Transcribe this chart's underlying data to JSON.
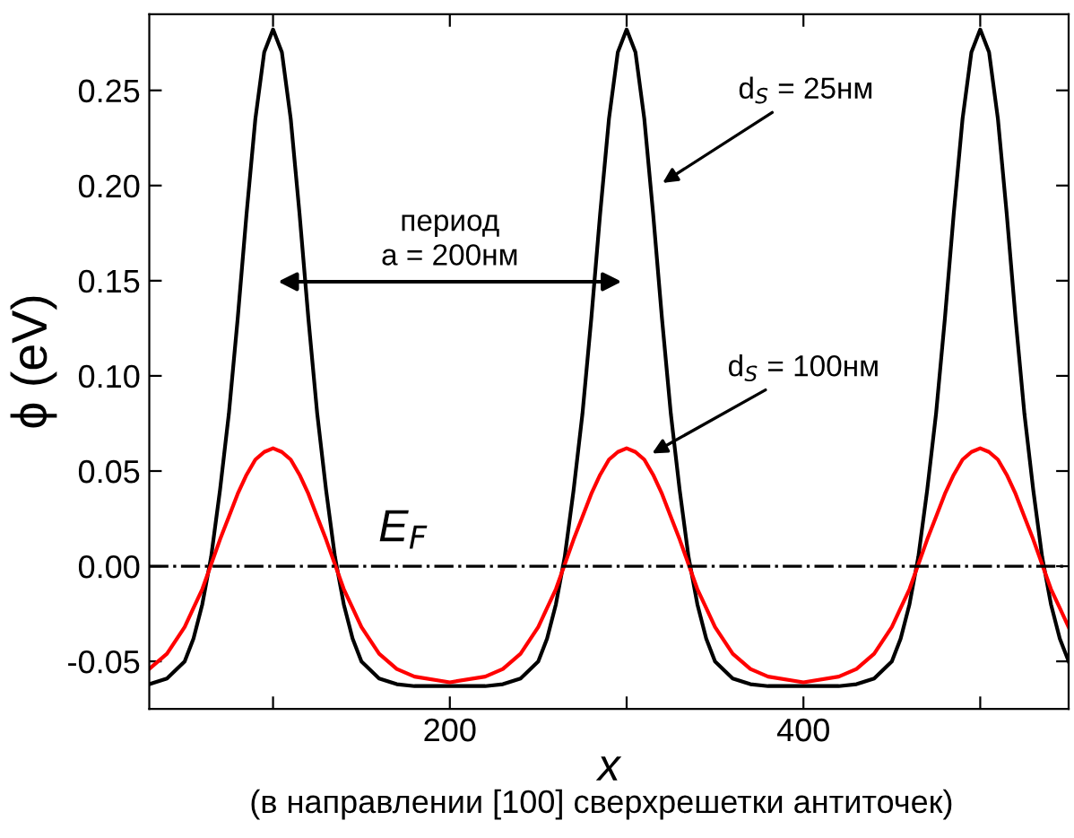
{
  "chart_data": {
    "type": "line",
    "ylabel": "ϕ (eV)",
    "xlabel": "x",
    "x": [
      30,
      40,
      50,
      55,
      60,
      65,
      70,
      75,
      80,
      85,
      90,
      95,
      100,
      105,
      110,
      115,
      120,
      125,
      130,
      135,
      140,
      145,
      150,
      160,
      170,
      180,
      200,
      220,
      230,
      240,
      250,
      255,
      260,
      265,
      270,
      275,
      280,
      285,
      290,
      295,
      300,
      305,
      310,
      315,
      320,
      325,
      330,
      335,
      340,
      345,
      350,
      360,
      370,
      380,
      400,
      420,
      430,
      440,
      450,
      455,
      460,
      465,
      470,
      475,
      480,
      485,
      490,
      495,
      500,
      505,
      510,
      515,
      520,
      525,
      530,
      535,
      540,
      545,
      550
    ],
    "series": [
      {
        "color": "#000000",
        "values": [
          -0.062,
          -0.059,
          -0.05,
          -0.038,
          -0.02,
          0.005,
          0.04,
          0.08,
          0.13,
          0.185,
          0.235,
          0.27,
          0.282,
          0.27,
          0.235,
          0.185,
          0.13,
          0.08,
          0.04,
          0.005,
          -0.02,
          -0.038,
          -0.05,
          -0.059,
          -0.062,
          -0.063,
          -0.063,
          -0.063,
          -0.062,
          -0.059,
          -0.05,
          -0.038,
          -0.02,
          0.005,
          0.04,
          0.08,
          0.13,
          0.185,
          0.235,
          0.27,
          0.282,
          0.27,
          0.235,
          0.185,
          0.13,
          0.08,
          0.04,
          0.005,
          -0.02,
          -0.038,
          -0.05,
          -0.059,
          -0.062,
          -0.063,
          -0.063,
          -0.063,
          -0.062,
          -0.059,
          -0.05,
          -0.038,
          -0.02,
          0.005,
          0.04,
          0.08,
          0.13,
          0.185,
          0.235,
          0.27,
          0.282,
          0.27,
          0.235,
          0.185,
          0.13,
          0.08,
          0.04,
          0.005,
          -0.02,
          -0.038,
          -0.05
        ]
      },
      {
        "color": "#ff0000",
        "values": [
          -0.054,
          -0.046,
          -0.032,
          -0.022,
          -0.012,
          0.001,
          0.014,
          0.026,
          0.038,
          0.048,
          0.056,
          0.06,
          0.062,
          0.06,
          0.056,
          0.048,
          0.038,
          0.026,
          0.014,
          0.001,
          -0.012,
          -0.022,
          -0.032,
          -0.046,
          -0.054,
          -0.058,
          -0.061,
          -0.058,
          -0.054,
          -0.046,
          -0.032,
          -0.022,
          -0.012,
          0.001,
          0.014,
          0.026,
          0.038,
          0.048,
          0.056,
          0.06,
          0.062,
          0.06,
          0.056,
          0.048,
          0.038,
          0.026,
          0.014,
          0.001,
          -0.012,
          -0.022,
          -0.032,
          -0.046,
          -0.054,
          -0.058,
          -0.061,
          -0.058,
          -0.054,
          -0.046,
          -0.032,
          -0.022,
          -0.012,
          0.001,
          0.014,
          0.026,
          0.038,
          0.048,
          0.056,
          0.06,
          0.062,
          0.06,
          0.056,
          0.048,
          0.038,
          0.026,
          0.014,
          0.001,
          -0.012,
          -0.022,
          -0.032
        ]
      }
    ],
    "xlim": [
      30,
      550
    ],
    "ylim": [
      -0.075,
      0.29
    ],
    "xticks": [
      {
        "value": 100,
        "label": null
      },
      200,
      {
        "value": 300,
        "label": null
      },
      400,
      {
        "value": 500,
        "label": null
      }
    ],
    "yticks": [
      {
        "value": -0.05,
        "label": "-0.05"
      },
      {
        "value": 0,
        "label": "0.00"
      },
      {
        "value": 0.05,
        "label": "0.05"
      },
      {
        "value": 0.1,
        "label": "0.10"
      },
      {
        "value": 0.15,
        "label": "0.15"
      },
      {
        "value": 0.2,
        "label": "0.20"
      },
      {
        "value": 0.25,
        "label": "0.25"
      }
    ],
    "ref_lines": [
      {
        "axis": "y",
        "value": 0,
        "label": "E$_{F}$",
        "color": "#000000",
        "line_style": "dashdot"
      }
    ],
    "annotations": [
      "период\na = 200нм",
      {
        "text": "d$_{S}$ = 25нм",
        "x": 318,
        "y": 0.2
      },
      {
        "text": "d$_{S}$ = 100нм",
        "x": 312,
        "y": 0.058
      },
      "(в направлении [100] сверхрешетки антиточек)"
    ],
    "grid": false,
    "legend": false,
    "marker": "none",
    "line_style": "solid"
  }
}
